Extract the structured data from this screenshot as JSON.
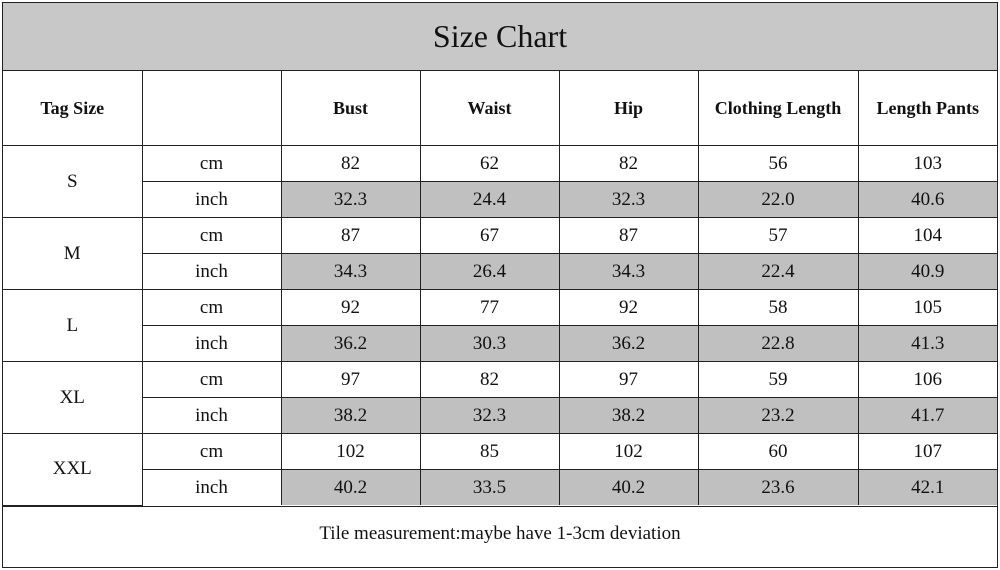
{
  "title": "Size Chart",
  "headers": {
    "tag_size": "Tag Size",
    "unit": "",
    "bust": "Bust",
    "waist": "Waist",
    "hip": "Hip",
    "clothing_length": "Clothing Length",
    "length_pants": "Length Pants"
  },
  "sizes": [
    {
      "tag": "S",
      "cm": {
        "unit": "cm",
        "bust": "82",
        "waist": "62",
        "hip": "82",
        "clothing_length": "56",
        "length_pants": "103"
      },
      "inch": {
        "unit": "inch",
        "bust": "32.3",
        "waist": "24.4",
        "hip": "32.3",
        "clothing_length": "22.0",
        "length_pants": "40.6"
      }
    },
    {
      "tag": "M",
      "cm": {
        "unit": "cm",
        "bust": "87",
        "waist": "67",
        "hip": "87",
        "clothing_length": "57",
        "length_pants": "104"
      },
      "inch": {
        "unit": "inch",
        "bust": "34.3",
        "waist": "26.4",
        "hip": "34.3",
        "clothing_length": "22.4",
        "length_pants": "40.9"
      }
    },
    {
      "tag": "L",
      "cm": {
        "unit": "cm",
        "bust": "92",
        "waist": "77",
        "hip": "92",
        "clothing_length": "58",
        "length_pants": "105"
      },
      "inch": {
        "unit": "inch",
        "bust": "36.2",
        "waist": "30.3",
        "hip": "36.2",
        "clothing_length": "22.8",
        "length_pants": "41.3"
      }
    },
    {
      "tag": "XL",
      "cm": {
        "unit": "cm",
        "bust": "97",
        "waist": "82",
        "hip": "97",
        "clothing_length": "59",
        "length_pants": "106"
      },
      "inch": {
        "unit": "inch",
        "bust": "38.2",
        "waist": "32.3",
        "hip": "38.2",
        "clothing_length": "23.2",
        "length_pants": "41.7"
      }
    },
    {
      "tag": "XXL",
      "cm": {
        "unit": "cm",
        "bust": "102",
        "waist": "85",
        "hip": "102",
        "clothing_length": "60",
        "length_pants": "107"
      },
      "inch": {
        "unit": "inch",
        "bust": "40.2",
        "waist": "33.5",
        "hip": "40.2",
        "clothing_length": "23.6",
        "length_pants": "42.1"
      }
    }
  ],
  "footer": "Tile measurement:maybe have 1-3cm deviation",
  "colors": {
    "header_bg": "#c8c8c8",
    "shaded_cell": "#c0c0c0",
    "border": "#222222"
  }
}
